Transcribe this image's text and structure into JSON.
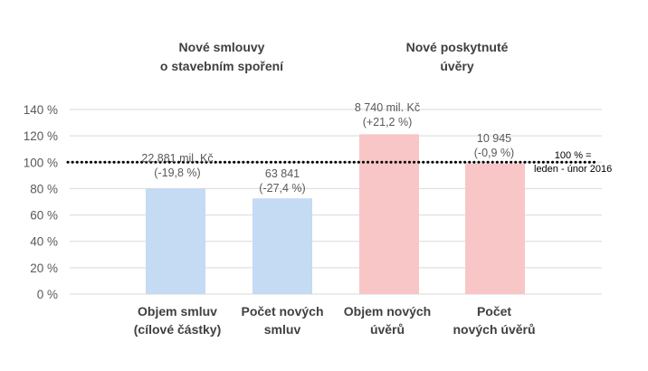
{
  "chart_data": {
    "type": "bar",
    "group_titles": [
      {
        "line1": "Nové smlouvy",
        "line2": "o stavebním spoření"
      },
      {
        "line1": "Nové poskytnuté",
        "line2": "úvěry"
      }
    ],
    "categories": [
      {
        "line1": "Objem smluv",
        "line2": "(cílové částky)"
      },
      {
        "line1": "Počet  nových",
        "line2": "smluv"
      },
      {
        "line1": "Objem nových",
        "line2": "úvěrů"
      },
      {
        "line1": "Počet",
        "line2": "nových úvěrů"
      }
    ],
    "values": [
      80.2,
      72.6,
      121.2,
      99.1
    ],
    "data_labels": [
      {
        "line1": "22 881 mil. Kč",
        "line2": "(-19,8 %)"
      },
      {
        "line1": "63 841",
        "line2": "(-27,4 %)"
      },
      {
        "line1": "8 740  mil. Kč",
        "line2": "(+21,2 %)"
      },
      {
        "line1": "10 945",
        "line2": "(-0,9 %)"
      }
    ],
    "bar_colors": [
      "#c5daf3",
      "#c5daf3",
      "#f8c6c6",
      "#f8c6c6"
    ],
    "reference_line": {
      "value": 100,
      "label_line1": "100 % =",
      "label_line2": "leden - únor 2016",
      "style": "dotted",
      "color": "#000000"
    },
    "ylim": [
      0,
      140
    ],
    "yticks": [
      {
        "value": 0,
        "label": "0 %"
      },
      {
        "value": 20,
        "label": "20 %"
      },
      {
        "value": 40,
        "label": "40 %"
      },
      {
        "value": 60,
        "label": "60 %"
      },
      {
        "value": 80,
        "label": "80 %"
      },
      {
        "value": 100,
        "label": "100 %"
      },
      {
        "value": 120,
        "label": "120 %"
      },
      {
        "value": 140,
        "label": "140 %"
      }
    ],
    "grid": true,
    "gridline_color": "#d9d9d9",
    "title": "",
    "xlabel": "",
    "ylabel": ""
  }
}
